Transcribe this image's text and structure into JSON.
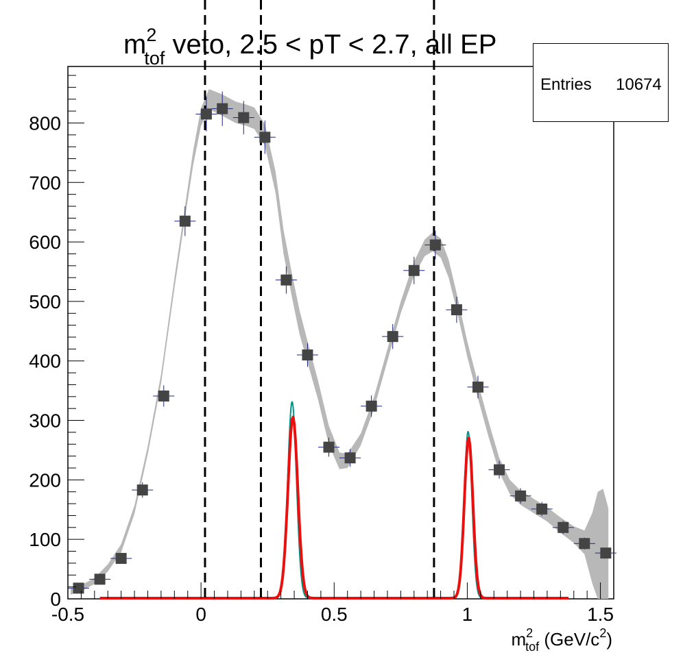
{
  "chart_data": {
    "type": "scatter",
    "title": {
      "base": "m",
      "sup": "2",
      "sub": "tof",
      "rest": " veto, 2.5 < pT < 2.7, all EP"
    },
    "xlabel": {
      "base": "m",
      "sup": "2",
      "sub": "tof",
      "rest": " (GeV/c",
      "rest_sup": "2",
      "rest_end": ")"
    },
    "ylabel": "",
    "xlim": [
      -0.5,
      1.55
    ],
    "ylim": [
      0,
      895
    ],
    "x_ticks": [
      -0.5,
      0,
      0.5,
      1,
      1.5
    ],
    "x_tick_labels": [
      "-0.5",
      "0",
      "0.5",
      "1",
      "1.5"
    ],
    "y_ticks": [
      0,
      100,
      200,
      300,
      400,
      500,
      600,
      700,
      800
    ],
    "y_tick_labels": [
      "0",
      "100",
      "200",
      "300",
      "400",
      "500",
      "600",
      "700",
      "800"
    ],
    "grid": false,
    "stats": {
      "label": "Entries",
      "value": "10674"
    },
    "data_points": {
      "color": "#444444",
      "error_color": "#1a237e",
      "x_half_width": 0.04,
      "points": [
        [
          -0.46,
          18,
          4
        ],
        [
          -0.38,
          33,
          6
        ],
        [
          -0.3,
          68,
          8
        ],
        [
          -0.22,
          183,
          13
        ],
        [
          -0.14,
          341,
          18
        ],
        [
          -0.06,
          635,
          25
        ],
        [
          0.02,
          815,
          29
        ],
        [
          0.08,
          824,
          29
        ],
        [
          0.16,
          809,
          28
        ],
        [
          0.24,
          776,
          28
        ],
        [
          0.32,
          536,
          23
        ],
        [
          0.4,
          410,
          20
        ],
        [
          0.48,
          255,
          16
        ],
        [
          0.56,
          237,
          15
        ],
        [
          0.64,
          324,
          18
        ],
        [
          0.72,
          441,
          21
        ],
        [
          0.8,
          552,
          23
        ],
        [
          0.88,
          595,
          24
        ],
        [
          0.96,
          486,
          22
        ],
        [
          1.04,
          356,
          19
        ],
        [
          1.12,
          217,
          15
        ],
        [
          1.2,
          173,
          13
        ],
        [
          1.28,
          151,
          12
        ],
        [
          1.36,
          120,
          11
        ],
        [
          1.44,
          93,
          10
        ],
        [
          1.52,
          77,
          9
        ]
      ]
    },
    "fit_band": {
      "color": "#b8b8b8",
      "points": [
        [
          -0.49,
          12,
          5
        ],
        [
          -0.45,
          18,
          5
        ],
        [
          -0.4,
          30,
          5
        ],
        [
          -0.35,
          52,
          6
        ],
        [
          -0.3,
          85,
          7
        ],
        [
          -0.25,
          150,
          7
        ],
        [
          -0.2,
          250,
          7
        ],
        [
          -0.15,
          370,
          8
        ],
        [
          -0.1,
          530,
          9
        ],
        [
          -0.06,
          650,
          10
        ],
        [
          -0.03,
          740,
          12
        ],
        [
          0.0,
          810,
          15
        ],
        [
          0.03,
          840,
          17
        ],
        [
          0.08,
          830,
          18
        ],
        [
          0.13,
          818,
          18
        ],
        [
          0.17,
          813,
          18
        ],
        [
          0.2,
          808,
          18
        ],
        [
          0.24,
          780,
          18
        ],
        [
          0.28,
          700,
          18
        ],
        [
          0.31,
          600,
          20
        ],
        [
          0.34,
          530,
          20
        ],
        [
          0.37,
          465,
          20
        ],
        [
          0.4,
          415,
          18
        ],
        [
          0.44,
          350,
          16
        ],
        [
          0.48,
          275,
          16
        ],
        [
          0.52,
          232,
          14
        ],
        [
          0.55,
          232,
          12
        ],
        [
          0.6,
          268,
          10
        ],
        [
          0.65,
          330,
          10
        ],
        [
          0.7,
          410,
          10
        ],
        [
          0.75,
          490,
          10
        ],
        [
          0.8,
          555,
          12
        ],
        [
          0.84,
          590,
          14
        ],
        [
          0.87,
          600,
          16
        ],
        [
          0.9,
          590,
          16
        ],
        [
          0.93,
          555,
          15
        ],
        [
          0.96,
          500,
          14
        ],
        [
          1.0,
          420,
          13
        ],
        [
          1.04,
          350,
          13
        ],
        [
          1.08,
          285,
          13
        ],
        [
          1.12,
          225,
          12
        ],
        [
          1.16,
          188,
          12
        ],
        [
          1.2,
          170,
          12
        ],
        [
          1.25,
          156,
          12
        ],
        [
          1.3,
          142,
          12
        ],
        [
          1.35,
          124,
          13
        ],
        [
          1.4,
          108,
          14
        ],
        [
          1.44,
          95,
          20
        ],
        [
          1.47,
          85,
          60
        ],
        [
          1.49,
          80,
          100
        ],
        [
          1.51,
          75,
          110
        ],
        [
          1.53,
          72,
          80
        ]
      ]
    },
    "peak_curves": [
      {
        "color": "#009688",
        "width": 2,
        "x_range": [
          0.26,
          0.42
        ],
        "mu": 0.342,
        "sigma": 0.0165,
        "amp": 330
      },
      {
        "color": "#009688",
        "width": 2,
        "x_range": [
          0.93,
          1.09
        ],
        "mu": 1.003,
        "sigma": 0.0145,
        "amp": 280
      },
      {
        "color": "#e8110f",
        "width": 4,
        "x_range": [
          -0.38,
          1.38
        ],
        "mu": 0.345,
        "sigma": 0.0185,
        "amp": 305,
        "mu2": 1.005,
        "sigma2": 0.016,
        "amp2": 270
      }
    ],
    "vertical_lines": [
      0.015,
      0.225,
      0.875
    ]
  }
}
